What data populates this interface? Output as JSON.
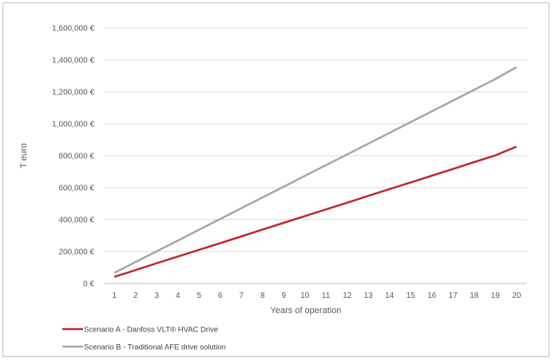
{
  "chart_data": {
    "type": "line",
    "title": "",
    "xlabel": "Years of operation",
    "ylabel": "T euro",
    "x": [
      1,
      2,
      3,
      4,
      5,
      6,
      7,
      8,
      9,
      10,
      11,
      12,
      13,
      14,
      15,
      16,
      17,
      18,
      19,
      20
    ],
    "ylim": [
      0,
      1600000
    ],
    "y_ticks": [
      0,
      200000,
      400000,
      600000,
      800000,
      1000000,
      1200000,
      1400000,
      1600000
    ],
    "y_tick_labels": [
      "0 €",
      "200,000 €",
      "400,000 €",
      "600,000 €",
      "800,000 €",
      "1,000,000 €",
      "1,200,000 €",
      "1,400,000 €",
      "1,600,000 €"
    ],
    "grid": true,
    "legend_position": "bottom-left",
    "series": [
      {
        "name": "Scenario A - Danfoss VLT® HVAC  Drive",
        "color": "#c0272d",
        "values": [
          42000,
          84000,
          127000,
          169000,
          211000,
          253000,
          295000,
          338000,
          380000,
          422000,
          464000,
          506000,
          549000,
          591000,
          633000,
          675000,
          717000,
          760000,
          802000,
          857000
        ]
      },
      {
        "name": "Scenario B - Traditional AFE drive solution",
        "color": "#a6a6a6",
        "values": [
          67000,
          135000,
          202000,
          269000,
          337000,
          404000,
          472000,
          539000,
          606000,
          674000,
          741000,
          808000,
          876000,
          943000,
          1011000,
          1078000,
          1145000,
          1213000,
          1280000,
          1355000
        ]
      }
    ]
  }
}
